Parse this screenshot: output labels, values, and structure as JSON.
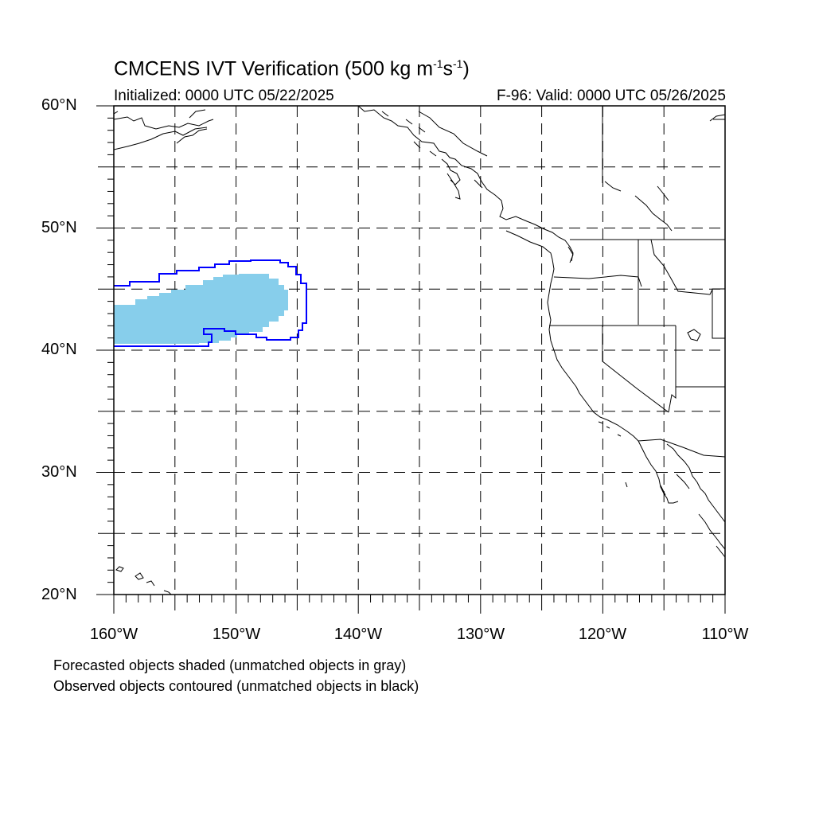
{
  "title": {
    "prefix": "CMCENS IVT Verification (500 kg m",
    "exp1": "-1",
    "mid": "s",
    "exp2": "-1",
    "suffix": ")"
  },
  "initialized": "Initialized: 0000 UTC 05/22/2025",
  "valid": "F-96: Valid: 0000 UTC 05/26/2025",
  "lat_labels": [
    "60°N",
    "50°N",
    "40°N",
    "30°N",
    "20°N"
  ],
  "lon_labels": [
    "160°W",
    "150°W",
    "140°W",
    "130°W",
    "120°W",
    "110°W"
  ],
  "notes": [
    "Forecasted objects shaded (unmatched objects in gray)",
    "Observed objects contoured (unmatched objects in black)"
  ],
  "map": {
    "lon_range": [
      -160,
      -110
    ],
    "lat_range": [
      20,
      60
    ],
    "grid_spacing_deg": 5,
    "colors": {
      "forecast_fill": "#87ceeb",
      "observed_contour": "#0000ff",
      "coast": "#000000",
      "grid": "#000000"
    }
  }
}
